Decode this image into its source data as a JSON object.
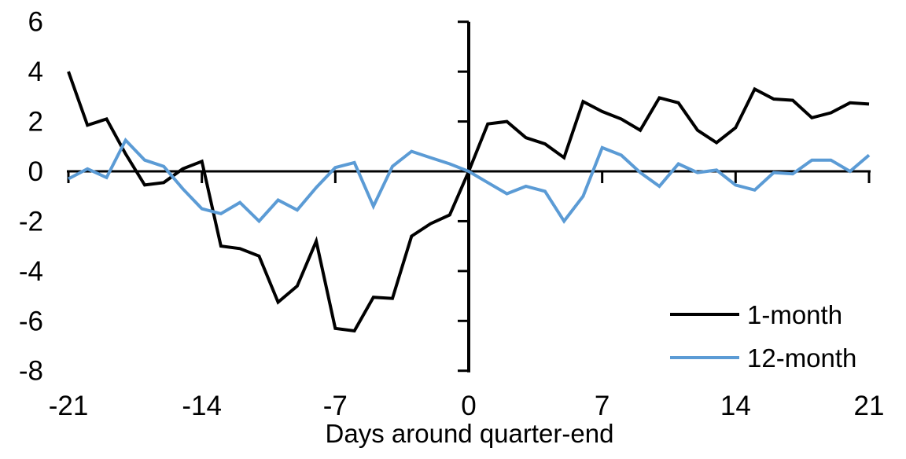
{
  "chart_data": {
    "type": "line",
    "title": "",
    "xlabel": "Days around quarter-end",
    "ylabel": "",
    "x": [
      -21,
      -20,
      -19,
      -18,
      -17,
      -16,
      -15,
      -14,
      -13,
      -12,
      -11,
      -10,
      -9,
      -8,
      -7,
      -6,
      -5,
      -4,
      -3,
      -2,
      -1,
      0,
      1,
      2,
      3,
      4,
      5,
      6,
      7,
      8,
      9,
      10,
      11,
      12,
      13,
      14,
      15,
      16,
      17,
      18,
      19,
      20,
      21
    ],
    "series": [
      {
        "name": "1-month",
        "color": "#000000",
        "values": [
          4.0,
          1.85,
          2.1,
          0.7,
          -0.55,
          -0.45,
          0.1,
          0.4,
          -3.0,
          -3.1,
          -3.4,
          -5.25,
          -4.6,
          -2.8,
          -6.3,
          -6.4,
          -5.05,
          -5.1,
          -2.6,
          -2.1,
          -1.75,
          0.0,
          1.9,
          2.0,
          1.35,
          1.1,
          0.55,
          2.8,
          2.4,
          2.1,
          1.65,
          2.95,
          2.75,
          1.65,
          1.15,
          1.75,
          3.3,
          2.9,
          2.85,
          2.15,
          2.35,
          2.75,
          2.7
        ]
      },
      {
        "name": "12-month",
        "color": "#5B9BD5",
        "values": [
          -0.3,
          0.1,
          -0.25,
          1.25,
          0.45,
          0.2,
          -0.7,
          -1.5,
          -1.7,
          -1.25,
          -2.0,
          -1.15,
          -1.55,
          -0.65,
          0.15,
          0.35,
          -1.4,
          0.2,
          0.8,
          0.55,
          0.3,
          0.0,
          -0.45,
          -0.9,
          -0.6,
          -0.8,
          -2.0,
          -1.0,
          0.95,
          0.65,
          -0.05,
          -0.6,
          0.3,
          -0.05,
          0.05,
          -0.55,
          -0.75,
          -0.05,
          -0.1,
          0.45,
          0.45,
          0.0,
          0.65
        ]
      }
    ],
    "xlim": [
      -21,
      21
    ],
    "ylim": [
      -8,
      6
    ],
    "x_ticks": [
      -21,
      -14,
      -7,
      0,
      7,
      14,
      21
    ],
    "y_ticks": [
      6,
      4,
      2,
      0,
      -2,
      -4,
      -6,
      -8
    ],
    "grid": false,
    "legend_position": "lower-right",
    "axis_color": "#000000",
    "background_color": "#ffffff"
  }
}
